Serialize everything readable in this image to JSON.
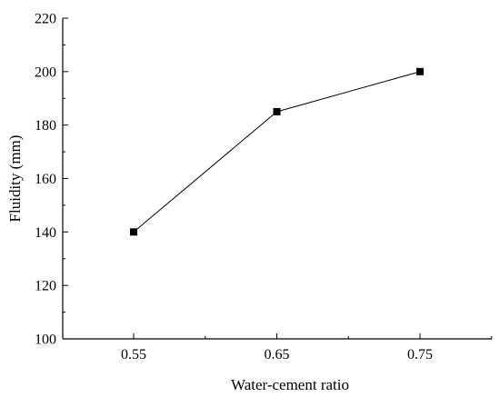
{
  "chart_data": {
    "type": "line",
    "title": "",
    "xlabel": "Water-cement ratio",
    "ylabel": "Fluidity (mm)",
    "categories": [
      "0.55",
      "0.65",
      "0.75"
    ],
    "series": [
      {
        "values": [
          140,
          185,
          200
        ]
      }
    ],
    "ylim": [
      100,
      220
    ],
    "y_ticks": [
      100,
      120,
      140,
      160,
      180,
      200,
      220
    ],
    "grid": false,
    "legend": "none",
    "marker": "square",
    "colors": {
      "line": "#000000",
      "marker": "#000000",
      "axis": "#000000"
    }
  }
}
